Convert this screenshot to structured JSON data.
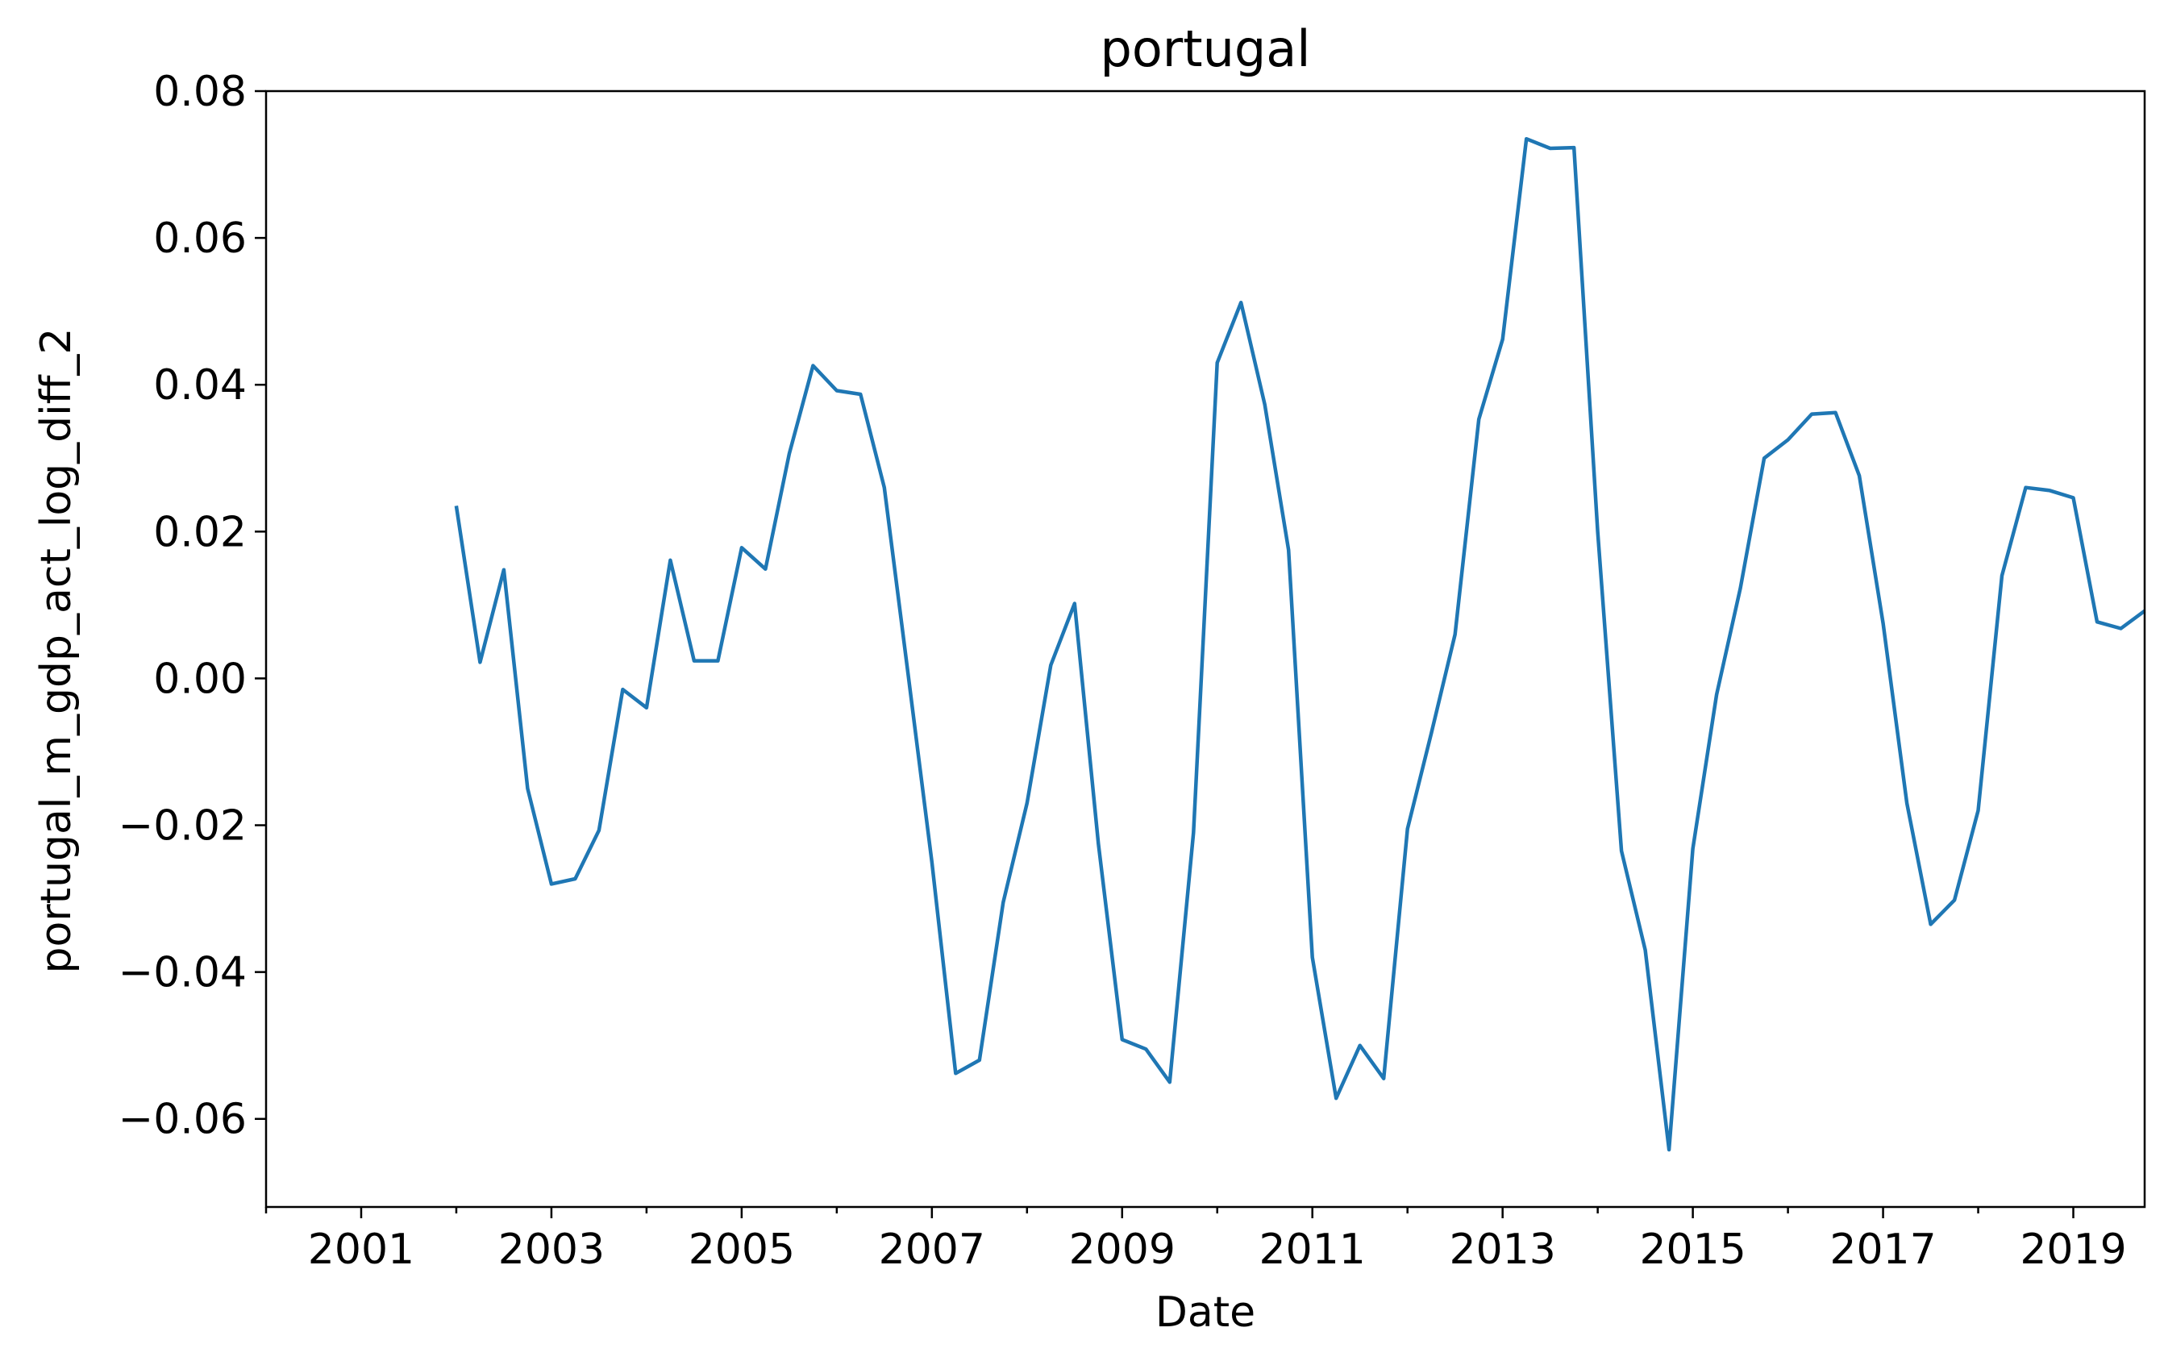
{
  "chart_data": {
    "type": "line",
    "title": "portugal",
    "xlabel": "Date",
    "ylabel": "portugal_m_gdp_act_log_diff_2",
    "xlim": [
      "2000-01-01",
      "2019-10-01"
    ],
    "ylim": [
      -0.072,
      0.08
    ],
    "xticks": [
      "2001",
      "2003",
      "2005",
      "2007",
      "2009",
      "2011",
      "2013",
      "2015",
      "2017",
      "2019"
    ],
    "yticks": [
      "0.08",
      "0.06",
      "0.04",
      "0.02",
      "0.00",
      "−0.02",
      "−0.04",
      "−0.06"
    ],
    "grid": false,
    "line_color": "#1f77b4",
    "series": [
      {
        "x": [
          "2002-01-01",
          "2002-04-01",
          "2002-07-01",
          "2002-10-01",
          "2003-01-01",
          "2003-04-01",
          "2003-07-01",
          "2003-10-01",
          "2004-01-01",
          "2004-04-01",
          "2004-07-01",
          "2004-10-01",
          "2005-01-01",
          "2005-04-01",
          "2005-07-01",
          "2005-10-01",
          "2006-01-01",
          "2006-04-01",
          "2006-07-01",
          "2006-10-01",
          "2007-01-01",
          "2007-04-01",
          "2007-07-01",
          "2007-10-01",
          "2008-01-01",
          "2008-04-01",
          "2008-07-01",
          "2008-10-01",
          "2009-01-01",
          "2009-04-01",
          "2009-07-01",
          "2009-10-01",
          "2010-01-01",
          "2010-04-01",
          "2010-07-01",
          "2010-10-01",
          "2011-01-01",
          "2011-04-01",
          "2011-07-01",
          "2011-10-01",
          "2012-01-01",
          "2012-04-01",
          "2012-07-01",
          "2012-10-01",
          "2013-01-01",
          "2013-04-01",
          "2013-07-01",
          "2013-10-01",
          "2014-01-01",
          "2014-04-01",
          "2014-07-01",
          "2014-10-01",
          "2015-01-01",
          "2015-04-01",
          "2015-07-01",
          "2015-10-01",
          "2016-01-01",
          "2016-04-01",
          "2016-07-01",
          "2016-10-01",
          "2017-01-01",
          "2017-04-01",
          "2017-07-01",
          "2017-10-01",
          "2018-01-01",
          "2018-04-01",
          "2018-07-01",
          "2018-10-01",
          "2019-01-01",
          "2019-04-01",
          "2019-07-01",
          "2019-10-01"
        ],
        "values": [
          0.0235,
          0.0022,
          0.0148,
          -0.015,
          -0.028,
          -0.0273,
          -0.0207,
          -0.0015,
          -0.004,
          0.0161,
          0.0024,
          0.0024,
          0.0178,
          0.0149,
          0.0306,
          0.0426,
          0.0392,
          0.0387,
          0.026,
          0.0006,
          -0.025,
          -0.0538,
          -0.052,
          -0.0305,
          -0.017,
          0.0018,
          0.0102,
          -0.0225,
          -0.0492,
          -0.0505,
          -0.055,
          -0.021,
          0.043,
          0.0512,
          0.0373,
          0.0175,
          -0.038,
          -0.0572,
          -0.05,
          -0.0545,
          -0.0205,
          -0.0075,
          0.006,
          0.0353,
          0.0462,
          0.0735,
          0.0722,
          0.0723,
          0.02,
          -0.0235,
          -0.037,
          -0.0642,
          -0.0232,
          -0.0022,
          0.0123,
          0.03,
          0.0325,
          0.036,
          0.0362,
          0.0276,
          0.0075,
          -0.017,
          -0.0335,
          -0.0302,
          -0.018,
          0.014,
          0.026,
          0.0256,
          0.0246,
          0.0077,
          0.0068,
          0.0092
        ]
      }
    ]
  }
}
